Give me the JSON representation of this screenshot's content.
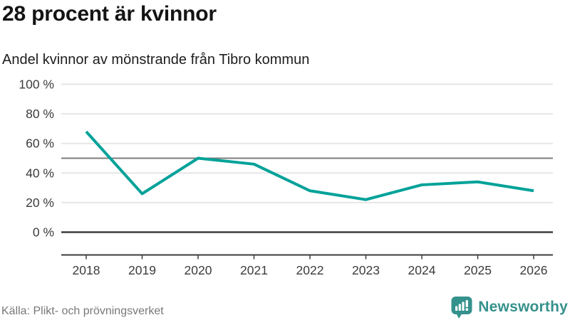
{
  "header": {
    "title": "28 procent är kvinnor",
    "subtitle": "Andel kvinnor av mönstrande från Tibro kommun"
  },
  "chart_data": {
    "type": "line",
    "title": "28 procent är kvinnor",
    "subtitle": "Andel kvinnor av mönstrande från Tibro kommun",
    "x": [
      "2018",
      "2019",
      "2020",
      "2021",
      "2022",
      "2023",
      "2024",
      "2025",
      "2026"
    ],
    "series": [
      {
        "name": "Andel kvinnor av mönstrande",
        "values": [
          68,
          26,
          50,
          46,
          28,
          22,
          32,
          34,
          28
        ]
      }
    ],
    "ylim": [
      0,
      100
    ],
    "yticks": [
      0,
      20,
      40,
      60,
      80,
      100
    ],
    "ytick_suffix": " %",
    "reference_line": 50,
    "grid": true,
    "legend": "none",
    "line_color": "#00a299",
    "colors": {
      "grid": "#e6e6e6",
      "reference": "#7d7d7d",
      "axis": "#3d3d3d",
      "tick_text": "#3c3c3c"
    }
  },
  "footer": {
    "source": "Källa: Plikt- och prövningsverket",
    "brand": "Newsworthy",
    "brand_color": "#35918c"
  }
}
